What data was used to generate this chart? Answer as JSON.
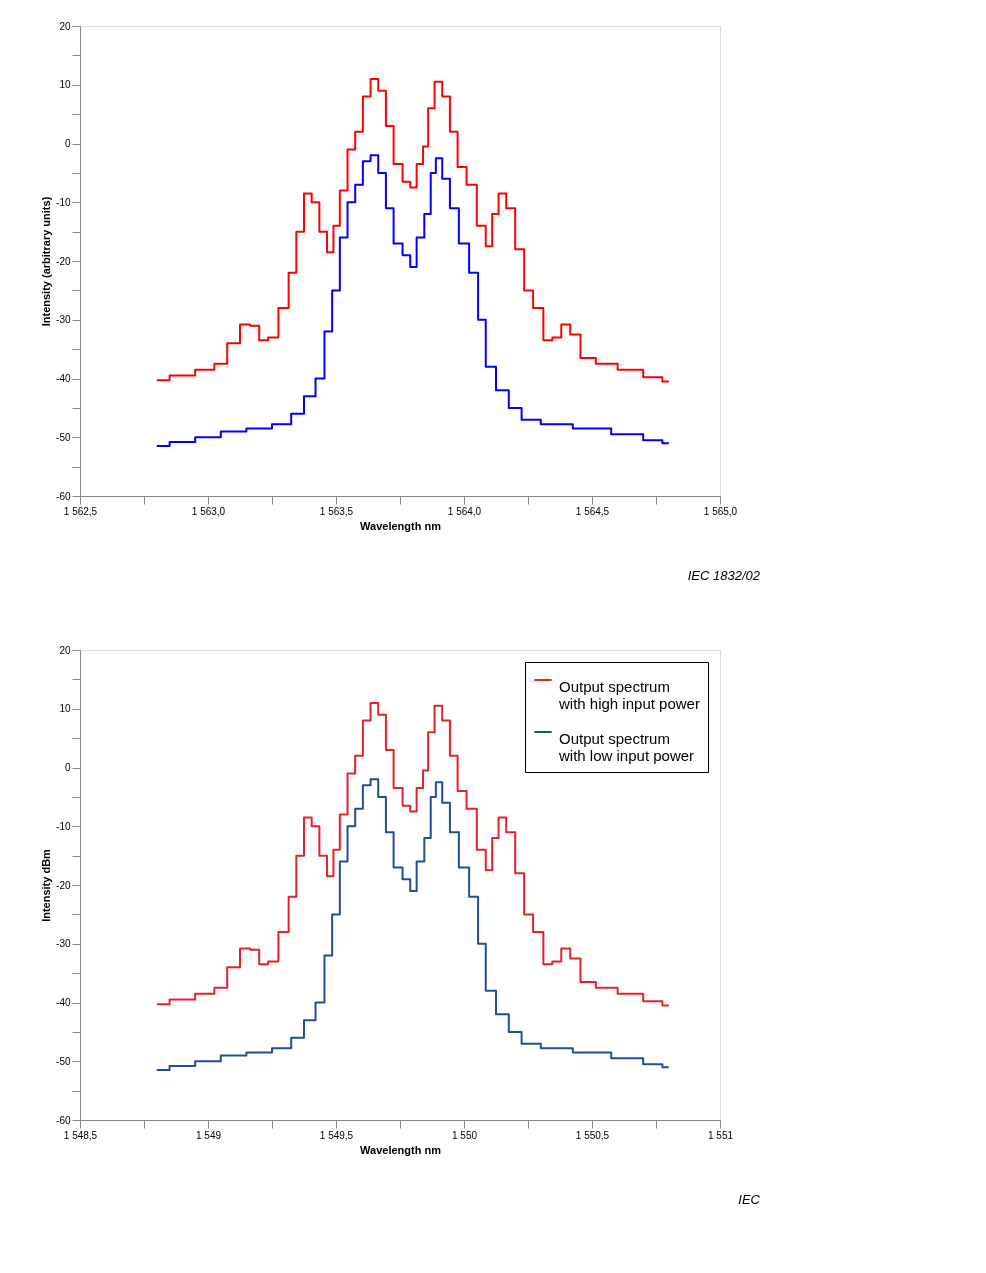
{
  "chart_data": [
    {
      "type": "step",
      "xlabel": "Wavelength   nm",
      "ylabel": "Intensity (arbitrary units)",
      "xlim": [
        1562.5,
        1565.0
      ],
      "ylim": [
        -60,
        20
      ],
      "xticks": [
        {
          "value": 1562.5,
          "label": "1 562,5"
        },
        {
          "value": 1562.75,
          "label": null
        },
        {
          "value": 1563.0,
          "label": "1 563,0"
        },
        {
          "value": 1563.25,
          "label": null
        },
        {
          "value": 1563.5,
          "label": "1 563,5"
        },
        {
          "value": 1563.75,
          "label": null
        },
        {
          "value": 1564.0,
          "label": "1 564,0"
        },
        {
          "value": 1564.25,
          "label": null
        },
        {
          "value": 1564.5,
          "label": "1 564,5"
        },
        {
          "value": 1564.75,
          "label": null
        },
        {
          "value": 1565.0,
          "label": "1 565,0"
        }
      ],
      "yticks": [
        -60,
        {
          "value": -55,
          "label": null
        },
        -50,
        {
          "value": -45,
          "label": null
        },
        -40,
        {
          "value": -35,
          "label": null
        },
        -30,
        {
          "value": -25,
          "label": null
        },
        -20,
        {
          "value": -15,
          "label": null
        },
        -10,
        {
          "value": -5,
          "label": null
        },
        0,
        {
          "value": 5,
          "label": null
        },
        10,
        {
          "value": 15,
          "label": null
        },
        20
      ],
      "annotations": [
        "IEC   1832/02"
      ],
      "series": [
        {
          "color": "#ff0000",
          "x": [
            1562.8,
            1562.9,
            1563.0,
            1563.05,
            1563.1,
            1563.15,
            1563.18,
            1563.22,
            1563.25,
            1563.3,
            1563.33,
            1563.36,
            1563.39,
            1563.42,
            1563.45,
            1563.48,
            1563.5,
            1563.53,
            1563.56,
            1563.59,
            1563.62,
            1563.65,
            1563.68,
            1563.71,
            1563.74,
            1563.78,
            1563.8,
            1563.83,
            1563.85,
            1563.87,
            1563.9,
            1563.93,
            1563.96,
            1563.99,
            1564.03,
            1564.07,
            1564.1,
            1564.12,
            1564.15,
            1564.18,
            1564.22,
            1564.25,
            1564.29,
            1564.33,
            1564.36,
            1564.4,
            1564.43,
            1564.48,
            1564.55,
            1564.65,
            1564.75,
            1564.8
          ],
          "values": [
            -40.3,
            -39.5,
            -38.5,
            -37.5,
            -34,
            -30.8,
            -31,
            -33.5,
            -33,
            -28,
            -22,
            -15,
            -8.5,
            -10,
            -15,
            -18.5,
            -14,
            -8,
            -1,
            2,
            8,
            11,
            9,
            3,
            -3.5,
            -6.5,
            -7.5,
            -3.5,
            -0.5,
            6,
            10.5,
            8,
            2,
            -4,
            -7,
            -14,
            -17.5,
            -12,
            -8.5,
            -11,
            -18,
            -25,
            -28,
            -33.5,
            -33,
            -30.8,
            -32.5,
            -36.5,
            -37.5,
            -38.5,
            -39.8,
            -40.5
          ]
        },
        {
          "color": "#0000ff",
          "x": [
            1562.8,
            1562.9,
            1563.0,
            1563.1,
            1563.2,
            1563.3,
            1563.35,
            1563.4,
            1563.44,
            1563.47,
            1563.5,
            1563.53,
            1563.56,
            1563.59,
            1563.62,
            1563.65,
            1563.68,
            1563.71,
            1563.74,
            1563.78,
            1563.8,
            1563.83,
            1563.86,
            1563.88,
            1563.9,
            1563.93,
            1563.96,
            1564.0,
            1564.04,
            1564.07,
            1564.1,
            1564.15,
            1564.2,
            1564.25,
            1564.35,
            1564.5,
            1564.65,
            1564.75,
            1564.8
          ],
          "values": [
            -51.5,
            -50.8,
            -50,
            -49,
            -48.5,
            -47.8,
            -46,
            -43,
            -40,
            -32,
            -25,
            -16,
            -10,
            -7,
            -3,
            -2,
            -5,
            -11,
            -17,
            -19,
            -21,
            -16,
            -12,
            -5,
            -2.5,
            -6,
            -11,
            -17,
            -22,
            -30,
            -38,
            -42,
            -45,
            -47,
            -47.8,
            -48.5,
            -49.5,
            -50.5,
            -51
          ]
        }
      ]
    },
    {
      "type": "step",
      "xlabel": "Wavelength  nm",
      "ylabel": "Intensity  dBm",
      "legend": "top right",
      "xlim": [
        1548.5,
        1551.0
      ],
      "ylim": [
        -60,
        20
      ],
      "xticks": [
        {
          "value": 1548.5,
          "label": "1 548,5"
        },
        {
          "value": 1548.75,
          "label": null
        },
        {
          "value": 1549.0,
          "label": "1 549"
        },
        {
          "value": 1549.25,
          "label": null
        },
        {
          "value": 1549.5,
          "label": "1 549,5"
        },
        {
          "value": 1549.75,
          "label": null
        },
        {
          "value": 1550.0,
          "label": "1 550"
        },
        {
          "value": 1550.25,
          "label": null
        },
        {
          "value": 1550.5,
          "label": "1 550,5"
        },
        {
          "value": 1550.75,
          "label": null
        },
        {
          "value": 1551.0,
          "label": "1 551"
        }
      ],
      "yticks": [
        -60,
        {
          "value": -55,
          "label": null
        },
        -50,
        {
          "value": -45,
          "label": null
        },
        -40,
        {
          "value": -35,
          "label": null
        },
        -30,
        {
          "value": -25,
          "label": null
        },
        -20,
        {
          "value": -15,
          "label": null
        },
        -10,
        {
          "value": -5,
          "label": null
        },
        0,
        {
          "value": 5,
          "label": null
        },
        10,
        {
          "value": 15,
          "label": null
        },
        20
      ],
      "annotations": [
        "IEC"
      ],
      "series": [
        {
          "name": "Output spectrum with high input power",
          "color": "#e8202a",
          "x": [
            1548.8,
            1548.9,
            1549.0,
            1549.05,
            1549.1,
            1549.15,
            1549.18,
            1549.22,
            1549.25,
            1549.3,
            1549.33,
            1549.36,
            1549.39,
            1549.42,
            1549.45,
            1549.48,
            1549.5,
            1549.53,
            1549.56,
            1549.59,
            1549.62,
            1549.65,
            1549.68,
            1549.71,
            1549.74,
            1549.78,
            1549.8,
            1549.83,
            1549.85,
            1549.87,
            1549.9,
            1549.93,
            1549.96,
            1549.99,
            1550.03,
            1550.07,
            1550.1,
            1550.12,
            1550.15,
            1550.18,
            1550.22,
            1550.25,
            1550.29,
            1550.33,
            1550.36,
            1550.4,
            1550.43,
            1550.48,
            1550.55,
            1550.65,
            1550.75,
            1550.8
          ],
          "values": [
            -40.3,
            -39.5,
            -38.5,
            -37.5,
            -34,
            -30.8,
            -31,
            -33.5,
            -33,
            -28,
            -22,
            -15,
            -8.5,
            -10,
            -15,
            -18.5,
            -14,
            -8,
            -1,
            2,
            8,
            11,
            9,
            3,
            -3.5,
            -6.5,
            -7.5,
            -3.5,
            -0.5,
            6,
            10.5,
            8,
            2,
            -4,
            -7,
            -14,
            -17.5,
            -12,
            -8.5,
            -11,
            -18,
            -25,
            -28,
            -33.5,
            -33,
            -30.8,
            -32.5,
            -36.5,
            -37.5,
            -38.5,
            -39.8,
            -40.5
          ]
        },
        {
          "name": "Output spectrum with low input power",
          "color": "#1f4e9c",
          "x": [
            1548.8,
            1548.9,
            1549.0,
            1549.1,
            1549.2,
            1549.3,
            1549.35,
            1549.4,
            1549.44,
            1549.47,
            1549.5,
            1549.53,
            1549.56,
            1549.59,
            1549.62,
            1549.65,
            1549.68,
            1549.71,
            1549.74,
            1549.78,
            1549.8,
            1549.83,
            1549.86,
            1549.88,
            1549.9,
            1549.93,
            1549.96,
            1550.0,
            1550.04,
            1550.07,
            1550.1,
            1550.15,
            1550.2,
            1550.25,
            1550.35,
            1550.5,
            1550.65,
            1550.75,
            1550.8
          ],
          "values": [
            -51.5,
            -50.8,
            -50,
            -49,
            -48.5,
            -47.8,
            -46,
            -43,
            -40,
            -32,
            -25,
            -16,
            -10,
            -7,
            -3,
            -2,
            -5,
            -11,
            -17,
            -19,
            -21,
            -16,
            -12,
            -5,
            -2.5,
            -6,
            -11,
            -17,
            -22,
            -30,
            -38,
            -42,
            -45,
            -47,
            -47.8,
            -48.5,
            -49.5,
            -50.5,
            -51
          ]
        }
      ]
    }
  ]
}
